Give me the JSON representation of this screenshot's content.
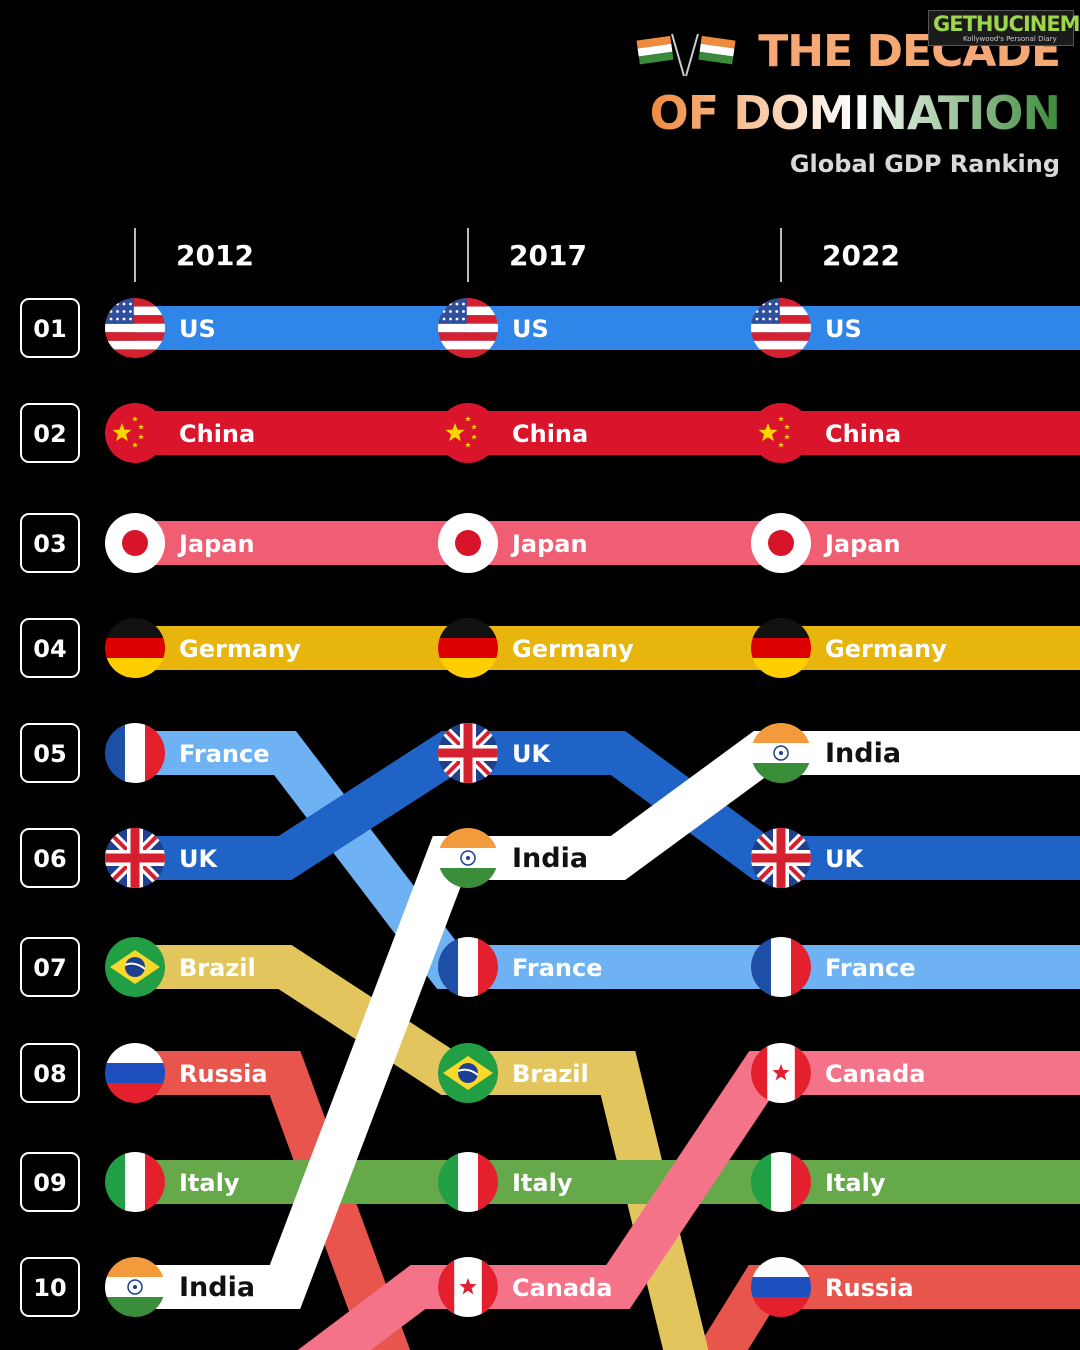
{
  "header": {
    "title_line1": "THE DECADE",
    "title_line2": "OF DOMINATION",
    "subtitle": "Global GDP Ranking",
    "watermark": "GETHUCINEMA",
    "watermark_sub": "Kollywood's Personal Diary"
  },
  "chart_data": {
    "type": "bump",
    "title": "THE DECADE OF DOMINATION",
    "subtitle": "Global GDP Ranking",
    "years": [
      "2012",
      "2017",
      "2022"
    ],
    "ranks": [
      "01",
      "02",
      "03",
      "04",
      "05",
      "06",
      "07",
      "08",
      "09",
      "10"
    ],
    "series": [
      {
        "name": "US",
        "ranks": [
          1,
          1,
          1
        ],
        "color": "#2f86e8",
        "flag": "us"
      },
      {
        "name": "China",
        "ranks": [
          2,
          2,
          2
        ],
        "color": "#d9142b",
        "flag": "cn"
      },
      {
        "name": "Japan",
        "ranks": [
          3,
          3,
          3
        ],
        "color": "#f05e74",
        "flag": "jp"
      },
      {
        "name": "Germany",
        "ranks": [
          4,
          4,
          4
        ],
        "color": "#e7b50c",
        "flag": "de"
      },
      {
        "name": "France",
        "ranks": [
          5,
          7,
          7
        ],
        "color": "#6fb2f4",
        "flag": "fr"
      },
      {
        "name": "UK",
        "ranks": [
          6,
          5,
          6
        ],
        "color": "#1f63c6",
        "flag": "gb"
      },
      {
        "name": "Brazil",
        "ranks": [
          7,
          8,
          null
        ],
        "color": "#e2c65d",
        "flag": "br"
      },
      {
        "name": "Russia",
        "ranks": [
          8,
          null,
          10
        ],
        "color": "#e8554d",
        "flag": "ru"
      },
      {
        "name": "Italy",
        "ranks": [
          9,
          9,
          9
        ],
        "color": "#65a94b",
        "flag": "it"
      },
      {
        "name": "India",
        "ranks": [
          10,
          6,
          5
        ],
        "color": "#ffffff",
        "flag": "in"
      },
      {
        "name": "Canada",
        "ranks": [
          null,
          10,
          8
        ],
        "color": "#f47389",
        "flag": "ca"
      }
    ]
  }
}
